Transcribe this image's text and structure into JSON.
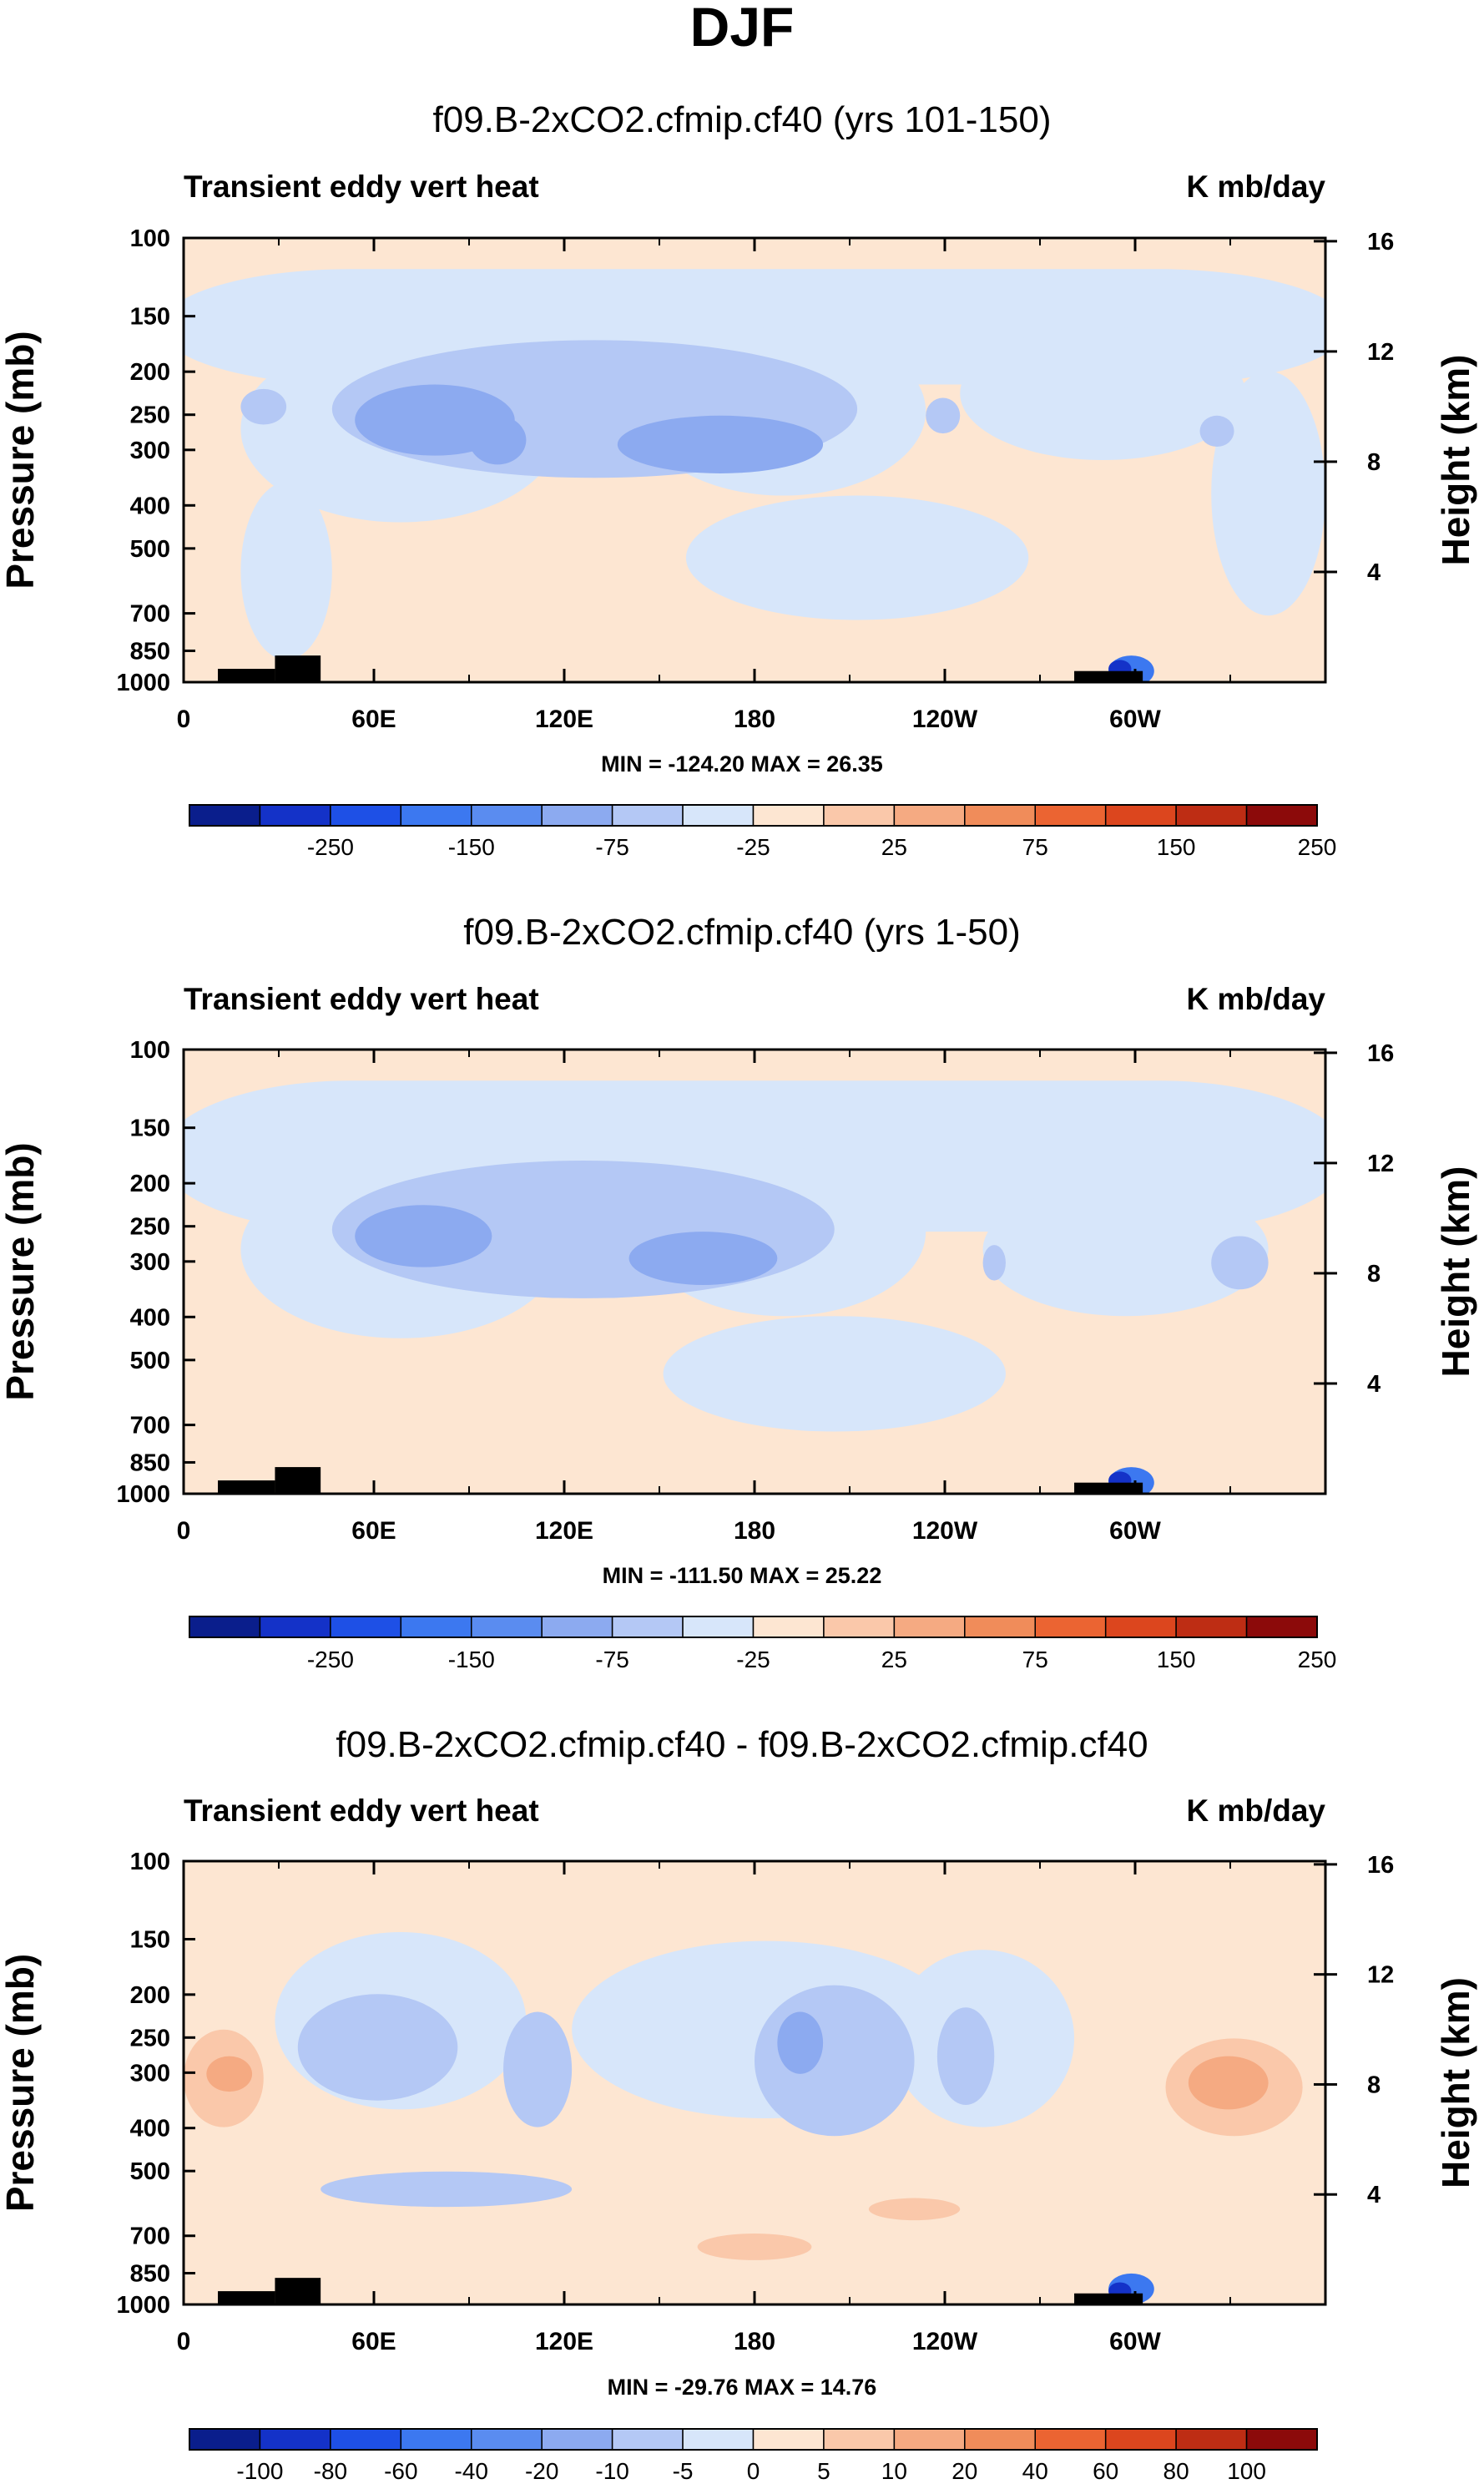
{
  "page_title": "DJF",
  "chart_data": [
    {
      "type": "heatmap",
      "title": "f09.B-2xCO2.cfmip.cf40 (yrs 101-150)",
      "left_label": "Transient eddy vert heat",
      "right_label": "K mb/day",
      "ylabel": "Pressure (mb)",
      "ylabel_right": "Height (km)",
      "x_ticks": [
        "0",
        "60E",
        "120E",
        "180",
        "120W",
        "60W"
      ],
      "y_ticks": [
        "100",
        "150",
        "200",
        "250",
        "300",
        "400",
        "500",
        "700",
        "850",
        "1000"
      ],
      "y_right_ticks": [
        "16",
        "12",
        "8",
        "4"
      ],
      "stats": "MIN = -124.20  MAX =  26.35",
      "colorbar_labels": [
        "-250",
        "-150",
        "-75",
        "-25",
        "25",
        "75",
        "150",
        "250"
      ],
      "colorbar_colors": [
        "#0a1e8c",
        "#1432c8",
        "#1e50e6",
        "#3c78f0",
        "#5a8cf0",
        "#8caaf0",
        "#b4c8f5",
        "#d7e6fa",
        "#fde6d2",
        "#fac8aa",
        "#f5aa82",
        "#f08c5a",
        "#eb6432",
        "#dc461e",
        "#be2d14",
        "#8c0a0a"
      ]
    },
    {
      "type": "heatmap",
      "title": "f09.B-2xCO2.cfmip.cf40 (yrs 1-50)",
      "left_label": "Transient eddy vert heat",
      "right_label": "K mb/day",
      "ylabel": "Pressure (mb)",
      "ylabel_right": "Height (km)",
      "x_ticks": [
        "0",
        "60E",
        "120E",
        "180",
        "120W",
        "60W"
      ],
      "y_ticks": [
        "100",
        "150",
        "200",
        "250",
        "300",
        "400",
        "500",
        "700",
        "850",
        "1000"
      ],
      "y_right_ticks": [
        "16",
        "12",
        "8",
        "4"
      ],
      "stats": "MIN = -111.50  MAX =  25.22",
      "colorbar_labels": [
        "-250",
        "-150",
        "-75",
        "-25",
        "25",
        "75",
        "150",
        "250"
      ],
      "colorbar_colors": [
        "#0a1e8c",
        "#1432c8",
        "#1e50e6",
        "#3c78f0",
        "#5a8cf0",
        "#8caaf0",
        "#b4c8f5",
        "#d7e6fa",
        "#fde6d2",
        "#fac8aa",
        "#f5aa82",
        "#f08c5a",
        "#eb6432",
        "#dc461e",
        "#be2d14",
        "#8c0a0a"
      ]
    },
    {
      "type": "heatmap",
      "title": "f09.B-2xCO2.cfmip.cf40 - f09.B-2xCO2.cfmip.cf40",
      "left_label": "Transient eddy vert heat",
      "right_label": "K mb/day",
      "ylabel": "Pressure (mb)",
      "ylabel_right": "Height (km)",
      "x_ticks": [
        "0",
        "60E",
        "120E",
        "180",
        "120W",
        "60W"
      ],
      "y_ticks": [
        "100",
        "150",
        "200",
        "250",
        "300",
        "400",
        "500",
        "700",
        "850",
        "1000"
      ],
      "y_right_ticks": [
        "16",
        "12",
        "8",
        "4"
      ],
      "stats": "MIN = -29.76  MAX = 14.76",
      "colorbar_labels": [
        "-100",
        "-80",
        "-60",
        "-40",
        "-20",
        "-10",
        "-5",
        "0",
        "5",
        "10",
        "20",
        "40",
        "60",
        "80",
        "100"
      ],
      "colorbar_colors": [
        "#0a1e8c",
        "#1432c8",
        "#1e50e6",
        "#3c78f0",
        "#5a8cf0",
        "#8caaf0",
        "#b4c8f5",
        "#d7e6fa",
        "#fde6d2",
        "#fac8aa",
        "#f5aa82",
        "#f08c5a",
        "#eb6432",
        "#dc461e",
        "#be2d14",
        "#8c0a0a"
      ]
    }
  ]
}
